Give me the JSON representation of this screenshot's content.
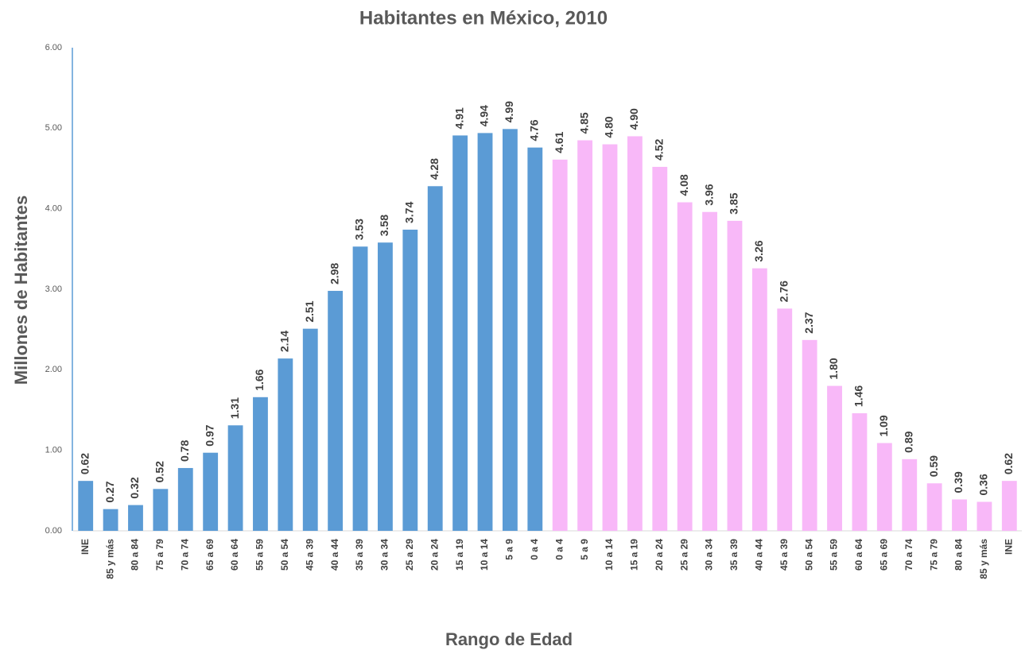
{
  "chart_data": {
    "type": "bar",
    "title": "Habitantes en México, 2010",
    "x_label": "Rango de Edad",
    "y_label": "Millones de Habitantes",
    "categories": [
      "INE",
      "85 y más",
      "80 a 84",
      "75 a 79",
      "70 a 74",
      "65 a 69",
      "60 a 64",
      "55 a 59",
      "50 a 54",
      "45 a 39",
      "40 a 44",
      "35 a 39",
      "30 a 34",
      "25 a 29",
      "20 a 24",
      "15 a 19",
      "10 a 14",
      "5 a 9",
      "0 a 4",
      "0 a 4",
      "5 a 9",
      "10 a 14",
      "15 a 19",
      "20 a 24",
      "25 a 29",
      "30 a 34",
      "35 a 39",
      "40 a 44",
      "45 a 39",
      "50 a 54",
      "55 a 59",
      "60 a 64",
      "65 a 69",
      "70 a 74",
      "75 a 79",
      "80 a 84",
      "85 y más",
      "INE"
    ],
    "values": [
      0.62,
      0.27,
      0.32,
      0.52,
      0.78,
      0.97,
      1.31,
      1.66,
      2.14,
      2.51,
      2.98,
      3.53,
      3.58,
      3.74,
      4.28,
      4.91,
      4.94,
      4.99,
      4.76,
      4.61,
      4.85,
      4.8,
      4.9,
      4.52,
      4.08,
      3.96,
      3.85,
      3.26,
      2.76,
      2.37,
      1.8,
      1.46,
      1.09,
      0.89,
      0.59,
      0.39,
      0.36,
      0.62
    ],
    "value_labels": [
      "0.62",
      "0.27",
      "0.32",
      "0.52",
      "0.78",
      "0.97",
      "1.31",
      "1.66",
      "2.14",
      "2.51",
      "2.98",
      "3.53",
      "3.58",
      "3.74",
      "4.28",
      "4.91",
      "4.94",
      "4.99",
      "4.76",
      "4.61",
      "4.85",
      "4.80",
      "4.90",
      "4.52",
      "4.08",
      "3.96",
      "3.85",
      "3.26",
      "2.76",
      "2.37",
      "1.80",
      "1.46",
      "1.09",
      "0.89",
      "0.59",
      "0.39",
      "0.36",
      "0.62"
    ],
    "colors": [
      "#5b9bd5",
      "#5b9bd5",
      "#5b9bd5",
      "#5b9bd5",
      "#5b9bd5",
      "#5b9bd5",
      "#5b9bd5",
      "#5b9bd5",
      "#5b9bd5",
      "#5b9bd5",
      "#5b9bd5",
      "#5b9bd5",
      "#5b9bd5",
      "#5b9bd5",
      "#5b9bd5",
      "#5b9bd5",
      "#5b9bd5",
      "#5b9bd5",
      "#5b9bd5",
      "#f8b8f8",
      "#f8b8f8",
      "#f8b8f8",
      "#f8b8f8",
      "#f8b8f8",
      "#f8b8f8",
      "#f8b8f8",
      "#f8b8f8",
      "#f8b8f8",
      "#f8b8f8",
      "#f8b8f8",
      "#f8b8f8",
      "#f8b8f8",
      "#f8b8f8",
      "#f8b8f8",
      "#f8b8f8",
      "#f8b8f8",
      "#f8b8f8",
      "#f8b8f8"
    ],
    "ylim": [
      0,
      6
    ],
    "yticks": [
      {
        "value": 0,
        "label": "0.00"
      },
      {
        "value": 1,
        "label": "1.00"
      },
      {
        "value": 2,
        "label": "2.00"
      },
      {
        "value": 3,
        "label": "3.00"
      },
      {
        "value": 4,
        "label": "4.00"
      },
      {
        "value": 5,
        "label": "5.00"
      },
      {
        "value": 6,
        "label": "6.00"
      }
    ],
    "grid": false
  }
}
